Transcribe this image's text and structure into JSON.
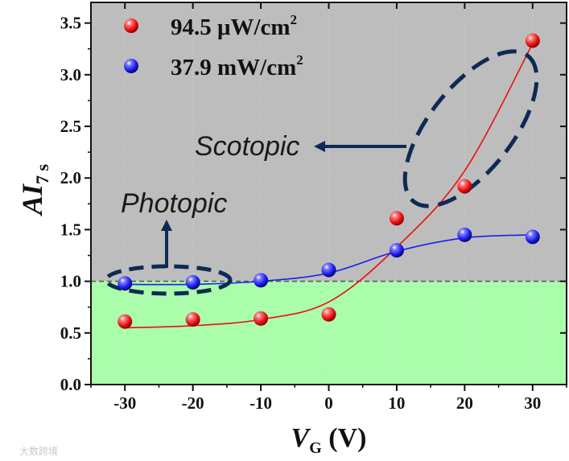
{
  "chart_data": {
    "type": "scatter",
    "x": [
      -30,
      -20,
      -10,
      0,
      10,
      20,
      30
    ],
    "series": [
      {
        "name": "94.5 μW/cm2",
        "label": "94.5 μW/cm",
        "label_sup": "2",
        "color": "#e8100f",
        "y": [
          0.61,
          0.63,
          0.64,
          0.68,
          1.61,
          1.92,
          3.33
        ],
        "fit": [
          0.55,
          0.57,
          0.63,
          0.8,
          1.33,
          2.07,
          3.3
        ]
      },
      {
        "name": "37.9 mW/cm2",
        "label": "37.9 mW/cm",
        "label_sup": "2",
        "color": "#1c1cf0",
        "y": [
          0.98,
          0.99,
          1.01,
          1.11,
          1.3,
          1.45,
          1.43
        ],
        "fit": [
          0.97,
          0.97,
          1.0,
          1.08,
          1.29,
          1.42,
          1.45
        ]
      }
    ],
    "xlabel_main": "V",
    "xlabel_sub": "G",
    "xlabel_unit": " (V)",
    "ylabel_main": "AI",
    "ylabel_sub": "7 s",
    "xlim": [
      -35,
      35
    ],
    "ylim": [
      0,
      3.7
    ],
    "xticks": [
      -30,
      -20,
      -10,
      0,
      10,
      20,
      30
    ],
    "yticks": [
      0.0,
      0.5,
      1.0,
      1.5,
      2.0,
      2.5,
      3.0,
      3.5
    ],
    "xtick_labels": [
      "-30",
      "-20",
      "-10",
      "0",
      "10",
      "20",
      "30"
    ],
    "ytick_labels": [
      "0.0",
      "0.5",
      "1.0",
      "1.5",
      "2.0",
      "2.5",
      "3.0",
      "3.5"
    ],
    "reference_line_y": 1.0,
    "regions": [
      {
        "name": "above-1",
        "from": 1.0,
        "to": 3.7,
        "color": "#bdbdbd"
      },
      {
        "name": "below-1",
        "from": 0.0,
        "to": 1.0,
        "color": "#aafdaa"
      }
    ],
    "annotations": {
      "scotopic": "Scotopic",
      "photopic": "Photopic"
    },
    "legend_position": "top-left"
  },
  "watermark": "大数跨境",
  "colors": {
    "annotation_dark": "#0e2a54"
  }
}
